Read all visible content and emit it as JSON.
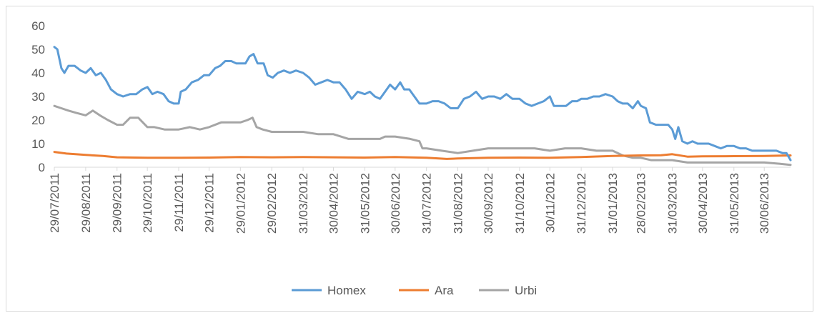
{
  "chart_data": {
    "type": "line",
    "title": "",
    "xlabel": "",
    "ylabel": "",
    "ylim": [
      0,
      60
    ],
    "yticks": [
      0,
      10,
      20,
      30,
      40,
      50,
      60
    ],
    "xlim": [
      "2011-07-29",
      "2013-07-26"
    ],
    "grid": false,
    "legend": "bottom",
    "x_tick_labels": [
      {
        "date": "2011-07-29",
        "label": "29/07/2011"
      },
      {
        "date": "2011-08-29",
        "label": "29/08/2011"
      },
      {
        "date": "2011-09-29",
        "label": "29/09/2011"
      },
      {
        "date": "2011-10-29",
        "label": "29/10/2011"
      },
      {
        "date": "2011-11-29",
        "label": "29/11/2011"
      },
      {
        "date": "2011-12-29",
        "label": "29/12/2011"
      },
      {
        "date": "2012-01-29",
        "label": "29/01/2012"
      },
      {
        "date": "2012-02-29",
        "label": "29/02/2012"
      },
      {
        "date": "2012-03-31",
        "label": "31/03/2012"
      },
      {
        "date": "2012-04-30",
        "label": "30/04/2012"
      },
      {
        "date": "2012-05-31",
        "label": "31/05/2012"
      },
      {
        "date": "2012-06-30",
        "label": "30/06/2012"
      },
      {
        "date": "2012-07-31",
        "label": "31/07/2012"
      },
      {
        "date": "2012-08-31",
        "label": "31/08/2012"
      },
      {
        "date": "2012-09-30",
        "label": "30/09/2012"
      },
      {
        "date": "2012-10-31",
        "label": "31/10/2012"
      },
      {
        "date": "2012-11-30",
        "label": "30/11/2012"
      },
      {
        "date": "2012-12-31",
        "label": "31/12/2012"
      },
      {
        "date": "2013-01-31",
        "label": "31/01/2013"
      },
      {
        "date": "2013-02-28",
        "label": "28/02/2013"
      },
      {
        "date": "2013-03-31",
        "label": "31/03/2013"
      },
      {
        "date": "2013-04-30",
        "label": "30/04/2013"
      },
      {
        "date": "2013-05-31",
        "label": "31/05/2013"
      },
      {
        "date": "2013-06-30",
        "label": "30/06/2013"
      }
    ],
    "series": [
      {
        "name": "Homex",
        "color": "#5b9bd5",
        "points": [
          [
            "2011-07-29",
            51
          ],
          [
            "2011-08-01",
            50
          ],
          [
            "2011-08-05",
            42
          ],
          [
            "2011-08-08",
            40
          ],
          [
            "2011-08-12",
            43
          ],
          [
            "2011-08-18",
            43
          ],
          [
            "2011-08-24",
            41
          ],
          [
            "2011-08-29",
            40
          ],
          [
            "2011-09-03",
            42
          ],
          [
            "2011-09-08",
            39
          ],
          [
            "2011-09-13",
            40
          ],
          [
            "2011-09-18",
            37
          ],
          [
            "2011-09-23",
            33
          ],
          [
            "2011-09-29",
            31
          ],
          [
            "2011-10-05",
            30
          ],
          [
            "2011-10-12",
            31
          ],
          [
            "2011-10-18",
            31
          ],
          [
            "2011-10-24",
            33
          ],
          [
            "2011-10-29",
            34
          ],
          [
            "2011-11-03",
            31
          ],
          [
            "2011-11-08",
            32
          ],
          [
            "2011-11-14",
            31
          ],
          [
            "2011-11-19",
            28
          ],
          [
            "2011-11-24",
            27
          ],
          [
            "2011-11-29",
            27
          ],
          [
            "2011-12-01",
            32
          ],
          [
            "2011-12-06",
            33
          ],
          [
            "2011-12-12",
            36
          ],
          [
            "2011-12-18",
            37
          ],
          [
            "2011-12-24",
            39
          ],
          [
            "2011-12-29",
            39
          ],
          [
            "2012-01-04",
            42
          ],
          [
            "2012-01-09",
            43
          ],
          [
            "2012-01-14",
            45
          ],
          [
            "2012-01-20",
            45
          ],
          [
            "2012-01-25",
            44
          ],
          [
            "2012-01-29",
            44
          ],
          [
            "2012-02-03",
            44
          ],
          [
            "2012-02-07",
            47
          ],
          [
            "2012-02-11",
            48
          ],
          [
            "2012-02-15",
            44
          ],
          [
            "2012-02-21",
            44
          ],
          [
            "2012-02-25",
            39
          ],
          [
            "2012-03-01",
            38
          ],
          [
            "2012-03-06",
            40
          ],
          [
            "2012-03-12",
            41
          ],
          [
            "2012-03-18",
            40
          ],
          [
            "2012-03-24",
            41
          ],
          [
            "2012-03-31",
            40
          ],
          [
            "2012-04-06",
            38
          ],
          [
            "2012-04-12",
            35
          ],
          [
            "2012-04-18",
            36
          ],
          [
            "2012-04-24",
            37
          ],
          [
            "2012-04-30",
            36
          ],
          [
            "2012-05-06",
            36
          ],
          [
            "2012-05-12",
            33
          ],
          [
            "2012-05-18",
            29
          ],
          [
            "2012-05-24",
            32
          ],
          [
            "2012-05-31",
            31
          ],
          [
            "2012-06-05",
            32
          ],
          [
            "2012-06-10",
            30
          ],
          [
            "2012-06-15",
            29
          ],
          [
            "2012-06-20",
            32
          ],
          [
            "2012-06-25",
            35
          ],
          [
            "2012-06-30",
            33
          ],
          [
            "2012-07-05",
            36
          ],
          [
            "2012-07-09",
            33
          ],
          [
            "2012-07-14",
            33
          ],
          [
            "2012-07-19",
            30
          ],
          [
            "2012-07-24",
            27
          ],
          [
            "2012-07-31",
            27
          ],
          [
            "2012-08-06",
            28
          ],
          [
            "2012-08-12",
            28
          ],
          [
            "2012-08-18",
            27
          ],
          [
            "2012-08-24",
            25
          ],
          [
            "2012-08-31",
            25
          ],
          [
            "2012-09-06",
            29
          ],
          [
            "2012-09-12",
            30
          ],
          [
            "2012-09-18",
            32
          ],
          [
            "2012-09-24",
            29
          ],
          [
            "2012-09-30",
            30
          ],
          [
            "2012-10-06",
            30
          ],
          [
            "2012-10-12",
            29
          ],
          [
            "2012-10-18",
            31
          ],
          [
            "2012-10-24",
            29
          ],
          [
            "2012-10-31",
            29
          ],
          [
            "2012-11-06",
            27
          ],
          [
            "2012-11-12",
            26
          ],
          [
            "2012-11-18",
            27
          ],
          [
            "2012-11-24",
            28
          ],
          [
            "2012-11-30",
            30
          ],
          [
            "2012-12-04",
            26
          ],
          [
            "2012-12-10",
            26
          ],
          [
            "2012-12-16",
            26
          ],
          [
            "2012-12-22",
            28
          ],
          [
            "2012-12-27",
            28
          ],
          [
            "2012-12-31",
            29
          ],
          [
            "2013-01-06",
            29
          ],
          [
            "2013-01-12",
            30
          ],
          [
            "2013-01-18",
            30
          ],
          [
            "2013-01-24",
            31
          ],
          [
            "2013-01-31",
            30
          ],
          [
            "2013-02-05",
            28
          ],
          [
            "2013-02-10",
            27
          ],
          [
            "2013-02-15",
            27
          ],
          [
            "2013-02-20",
            25
          ],
          [
            "2013-02-25",
            28
          ],
          [
            "2013-02-28",
            26
          ],
          [
            "2013-03-05",
            25
          ],
          [
            "2013-03-09",
            19
          ],
          [
            "2013-03-15",
            18
          ],
          [
            "2013-03-21",
            18
          ],
          [
            "2013-03-27",
            18
          ],
          [
            "2013-03-31",
            16
          ],
          [
            "2013-04-03",
            12
          ],
          [
            "2013-04-06",
            17
          ],
          [
            "2013-04-10",
            11
          ],
          [
            "2013-04-15",
            10
          ],
          [
            "2013-04-20",
            11
          ],
          [
            "2013-04-25",
            10
          ],
          [
            "2013-04-30",
            10
          ],
          [
            "2013-05-06",
            10
          ],
          [
            "2013-05-12",
            9
          ],
          [
            "2013-05-18",
            8
          ],
          [
            "2013-05-24",
            9
          ],
          [
            "2013-05-31",
            9
          ],
          [
            "2013-06-06",
            8
          ],
          [
            "2013-06-12",
            8
          ],
          [
            "2013-06-18",
            7
          ],
          [
            "2013-06-24",
            7
          ],
          [
            "2013-06-30",
            7
          ],
          [
            "2013-07-06",
            7
          ],
          [
            "2013-07-12",
            7
          ],
          [
            "2013-07-18",
            6
          ],
          [
            "2013-07-22",
            6
          ],
          [
            "2013-07-26",
            3
          ]
        ]
      },
      {
        "name": "Ara",
        "color": "#ed7d31",
        "points": [
          [
            "2011-07-29",
            6.5
          ],
          [
            "2011-08-10",
            5.8
          ],
          [
            "2011-08-29",
            5.2
          ],
          [
            "2011-09-15",
            4.8
          ],
          [
            "2011-09-29",
            4.2
          ],
          [
            "2011-10-29",
            4.0
          ],
          [
            "2011-11-29",
            4.0
          ],
          [
            "2011-12-29",
            4.1
          ],
          [
            "2012-01-29",
            4.3
          ],
          [
            "2012-02-29",
            4.2
          ],
          [
            "2012-03-31",
            4.3
          ],
          [
            "2012-04-30",
            4.2
          ],
          [
            "2012-05-31",
            4.1
          ],
          [
            "2012-06-30",
            4.3
          ],
          [
            "2012-07-31",
            4.0
          ],
          [
            "2012-08-20",
            3.5
          ],
          [
            "2012-08-31",
            3.7
          ],
          [
            "2012-09-30",
            4.0
          ],
          [
            "2012-10-31",
            4.1
          ],
          [
            "2012-11-30",
            4.0
          ],
          [
            "2012-12-31",
            4.3
          ],
          [
            "2013-01-31",
            4.8
          ],
          [
            "2013-02-28",
            5.0
          ],
          [
            "2013-03-20",
            5.1
          ],
          [
            "2013-03-31",
            5.5
          ],
          [
            "2013-04-15",
            4.5
          ],
          [
            "2013-04-30",
            4.6
          ],
          [
            "2013-05-31",
            4.7
          ],
          [
            "2013-06-30",
            4.8
          ],
          [
            "2013-07-26",
            5.0
          ]
        ]
      },
      {
        "name": "Urbi",
        "color": "#a5a5a5",
        "points": [
          [
            "2011-07-29",
            26
          ],
          [
            "2011-08-05",
            25
          ],
          [
            "2011-08-12",
            24
          ],
          [
            "2011-08-20",
            23
          ],
          [
            "2011-08-29",
            22
          ],
          [
            "2011-09-05",
            24
          ],
          [
            "2011-09-12",
            22
          ],
          [
            "2011-09-20",
            20
          ],
          [
            "2011-09-29",
            18
          ],
          [
            "2011-10-05",
            18
          ],
          [
            "2011-10-12",
            21
          ],
          [
            "2011-10-20",
            21
          ],
          [
            "2011-10-29",
            17
          ],
          [
            "2011-11-05",
            17
          ],
          [
            "2011-11-15",
            16
          ],
          [
            "2011-11-29",
            16
          ],
          [
            "2011-12-10",
            17
          ],
          [
            "2011-12-20",
            16
          ],
          [
            "2011-12-29",
            17
          ],
          [
            "2012-01-10",
            19
          ],
          [
            "2012-01-20",
            19
          ],
          [
            "2012-01-29",
            19
          ],
          [
            "2012-02-05",
            20
          ],
          [
            "2012-02-10",
            21
          ],
          [
            "2012-02-14",
            17
          ],
          [
            "2012-02-20",
            16
          ],
          [
            "2012-02-29",
            15
          ],
          [
            "2012-03-15",
            15
          ],
          [
            "2012-03-31",
            15
          ],
          [
            "2012-04-15",
            14
          ],
          [
            "2012-04-30",
            14
          ],
          [
            "2012-05-15",
            12
          ],
          [
            "2012-05-31",
            12
          ],
          [
            "2012-06-15",
            12
          ],
          [
            "2012-06-20",
            13
          ],
          [
            "2012-06-30",
            13
          ],
          [
            "2012-07-15",
            12
          ],
          [
            "2012-07-24",
            11
          ],
          [
            "2012-07-27",
            8
          ],
          [
            "2012-07-31",
            8
          ],
          [
            "2012-08-15",
            7
          ],
          [
            "2012-08-31",
            6
          ],
          [
            "2012-09-15",
            7
          ],
          [
            "2012-09-30",
            8
          ],
          [
            "2012-10-15",
            8
          ],
          [
            "2012-10-31",
            8
          ],
          [
            "2012-11-15",
            8
          ],
          [
            "2012-11-30",
            7
          ],
          [
            "2012-12-15",
            8
          ],
          [
            "2012-12-31",
            8
          ],
          [
            "2013-01-15",
            7
          ],
          [
            "2013-01-31",
            7
          ],
          [
            "2013-02-10",
            5
          ],
          [
            "2013-02-20",
            4
          ],
          [
            "2013-02-28",
            4
          ],
          [
            "2013-03-10",
            3
          ],
          [
            "2013-03-31",
            3
          ],
          [
            "2013-04-15",
            2
          ],
          [
            "2013-04-30",
            2
          ],
          [
            "2013-05-31",
            2
          ],
          [
            "2013-06-30",
            2
          ],
          [
            "2013-07-15",
            1.5
          ],
          [
            "2013-07-26",
            1
          ]
        ]
      }
    ]
  }
}
